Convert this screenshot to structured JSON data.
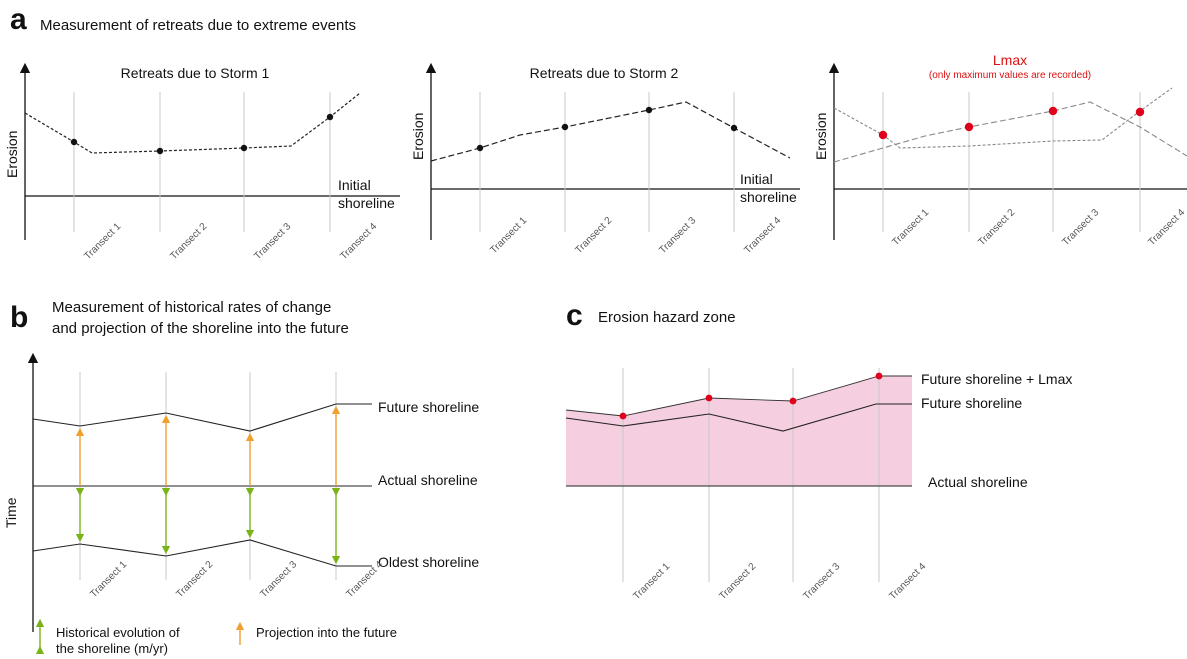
{
  "panel_a": {
    "letter": "a",
    "heading": "Measurement of retreats due to extreme events",
    "charts": [
      {
        "title": "Retreats due to Storm 1",
        "subtitle": "",
        "ylabel": "Erosion",
        "shore_label_1": "Initial",
        "shore_label_2": "shoreline"
      },
      {
        "title": "Retreats due to Storm 2",
        "subtitle": "",
        "ylabel": "Erosion",
        "shore_label_1": "Initial",
        "shore_label_2": "shoreline"
      },
      {
        "title": "Lmax",
        "subtitle": "(only maximum values are recorded)",
        "ylabel": "Erosion",
        "shore_label_1": "",
        "shore_label_2": ""
      }
    ],
    "transects": [
      "Transect 1",
      "Transect 2",
      "Transect 3",
      "Transect 4"
    ]
  },
  "panel_b": {
    "letter": "b",
    "heading_line1": "Measurement of historical rates of change",
    "heading_line2": "and projection of the shoreline into the future",
    "ylabel": "Time",
    "future_label": "Future shoreline",
    "actual_label": "Actual  shoreline",
    "oldest_label": "Oldest shoreline",
    "transects": [
      "Transect 1",
      "Transect 2",
      "Transect 3",
      "Transect 4"
    ],
    "legend": {
      "historical_line1": "Historical evolution of",
      "historical_line2": "the shoreline (m/yr)",
      "projection": "Projection into the future"
    }
  },
  "panel_c": {
    "letter": "c",
    "heading": "Erosion hazard zone",
    "future_lmax_label": "Future shoreline + Lmax",
    "future_label": "Future shoreline",
    "actual_label": "Actual shoreline",
    "transects": [
      "Transect 1",
      "Transect 2",
      "Transect 3",
      "Transect 4"
    ]
  },
  "colors": {
    "green_arrow": "#7ab317",
    "orange_arrow": "#f0a030",
    "red_point": "#e0001b",
    "hazard_fill": "#f5cfe0",
    "transect_line": "#c8c8c8"
  }
}
